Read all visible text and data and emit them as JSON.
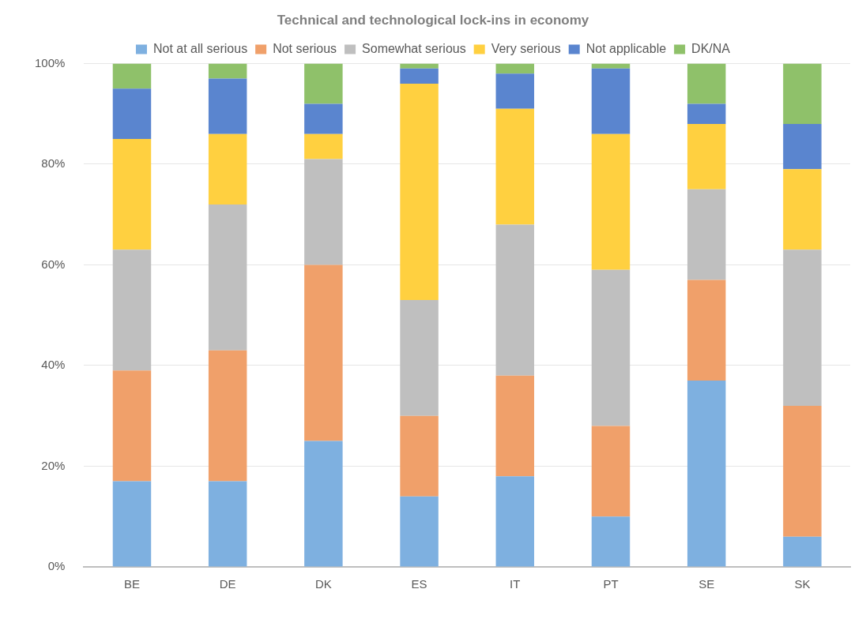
{
  "chart_data": {
    "type": "bar",
    "title": "Technical and technological lock-ins in economy",
    "stacked": true,
    "grid": "y",
    "legend": "top",
    "categories": [
      "BE",
      "DE",
      "DK",
      "ES",
      "IT",
      "PT",
      "SE",
      "SK"
    ],
    "series": [
      {
        "name": "Not at all serious",
        "color": "#7eb0e0",
        "values": [
          17,
          17,
          25,
          14,
          18,
          10,
          37,
          6
        ]
      },
      {
        "name": "Not serious",
        "color": "#f0a06a",
        "values": [
          22,
          26,
          35,
          16,
          20,
          18,
          20,
          26
        ]
      },
      {
        "name": "Somewhat serious",
        "color": "#bfbfbf",
        "values": [
          24,
          29,
          21,
          23,
          30,
          31,
          18,
          31
        ]
      },
      {
        "name": "Very serious",
        "color": "#ffd040",
        "values": [
          22,
          14,
          5,
          43,
          23,
          27,
          13,
          16
        ]
      },
      {
        "name": "Not applicable",
        "color": "#5a85cf",
        "values": [
          10,
          11,
          6,
          3,
          7,
          13,
          4,
          9
        ]
      },
      {
        "name": "DK/NA",
        "color": "#8fc16a",
        "values": [
          5,
          3,
          8,
          1,
          2,
          1,
          8,
          12
        ]
      }
    ],
    "ylim": [
      0,
      100
    ],
    "yticks": [
      {
        "value": 0,
        "label": "0%"
      },
      {
        "value": 20,
        "label": "20%"
      },
      {
        "value": 40,
        "label": "40%"
      },
      {
        "value": 60,
        "label": "60%"
      },
      {
        "value": 80,
        "label": "80%"
      },
      {
        "value": 100,
        "label": "100%"
      }
    ]
  }
}
